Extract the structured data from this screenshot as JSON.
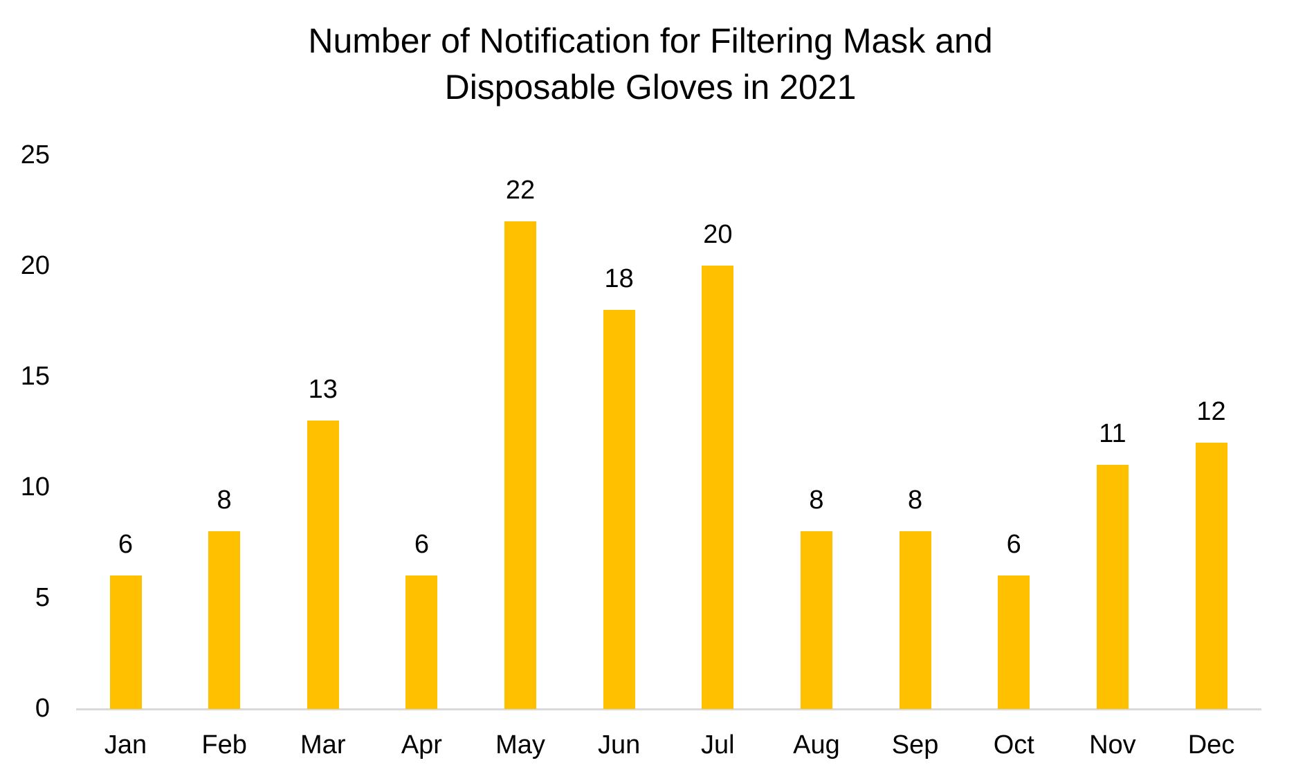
{
  "chart_data": {
    "type": "bar",
    "title": "Number of Notification for Filtering Mask and Disposable Gloves in 2021",
    "title_lines": [
      "Number of Notification for Filtering Mask and",
      "Disposable Gloves in 2021"
    ],
    "categories": [
      "Jan",
      "Feb",
      "Mar",
      "Apr",
      "May",
      "Jun",
      "Jul",
      "Aug",
      "Sep",
      "Oct",
      "Nov",
      "Dec"
    ],
    "values": [
      6,
      8,
      13,
      6,
      22,
      18,
      20,
      8,
      8,
      6,
      11,
      12
    ],
    "data_labels_shown": true,
    "xlabel": "",
    "ylabel": "",
    "ylim": [
      0,
      25
    ],
    "yticks": [
      0,
      5,
      10,
      15,
      20,
      25
    ],
    "grid": false,
    "legend_position": "none",
    "colors": {
      "bar": "#FFC000",
      "axis_line": "#D9D9D9",
      "text": "#000000"
    }
  }
}
